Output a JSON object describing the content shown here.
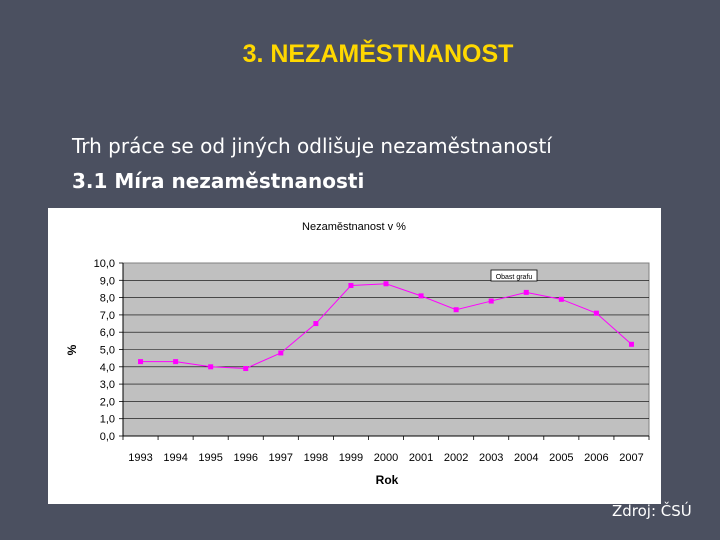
{
  "slide": {
    "title": "3. NEZAMĚSTNANOST",
    "line1": "Trh práce se od jiných odlišuje nezaměstnaností",
    "line2": "3.1 Míra nezaměstnanosti",
    "source": "Zdroj: ČSÚ"
  },
  "chart_data": {
    "type": "line",
    "title": "Nezaměstnanost v %",
    "xlabel": "Rok",
    "ylabel": "%",
    "ylim": [
      0,
      10
    ],
    "ytick_labels": [
      "0,0",
      "1,0",
      "2,0",
      "3,0",
      "4,0",
      "5,0",
      "6,0",
      "7,0",
      "8,0",
      "9,0",
      "10,0"
    ],
    "categories": [
      "1993",
      "1994",
      "1995",
      "1996",
      "1997",
      "1998",
      "1999",
      "2000",
      "2001",
      "2002",
      "2003",
      "2004",
      "2005",
      "2006",
      "2007"
    ],
    "series": [
      {
        "values": [
          4.3,
          4.3,
          4.0,
          3.9,
          4.8,
          6.5,
          8.7,
          8.8,
          8.1,
          7.3,
          7.8,
          8.3,
          7.9,
          7.1,
          5.3
        ]
      }
    ],
    "annotation": "Obast grafu",
    "grid": "horizontal",
    "colors": {
      "plot_bg": "#c0c0c0",
      "line": "#ff00ff",
      "gridline": "#000000"
    }
  }
}
